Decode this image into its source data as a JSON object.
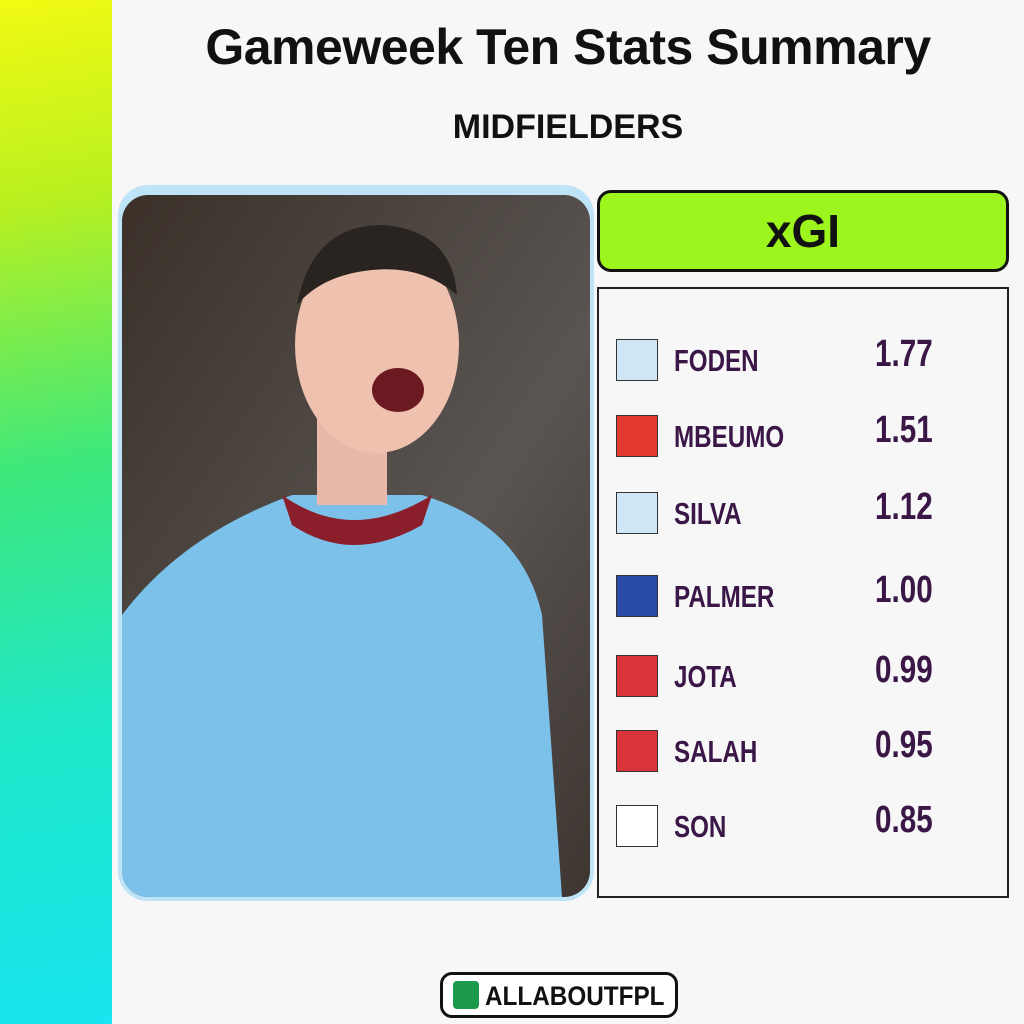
{
  "header": {
    "title": "Gameweek Ten Stats Summary",
    "subtitle": "MIDFIELDERS"
  },
  "table": {
    "metric": "xGI",
    "rows": [
      [
        "FODEN",
        "1.77"
      ],
      [
        "MBEUMO",
        "1.51"
      ],
      [
        "SILVA",
        "1.12"
      ],
      [
        "PALMER",
        "1.00"
      ],
      [
        "JOTA",
        "0.99"
      ],
      [
        "SALAH",
        "0.95"
      ],
      [
        "SON",
        "0.85"
      ]
    ]
  },
  "footer": {
    "brand": "ALLABOUTFPL"
  }
}
